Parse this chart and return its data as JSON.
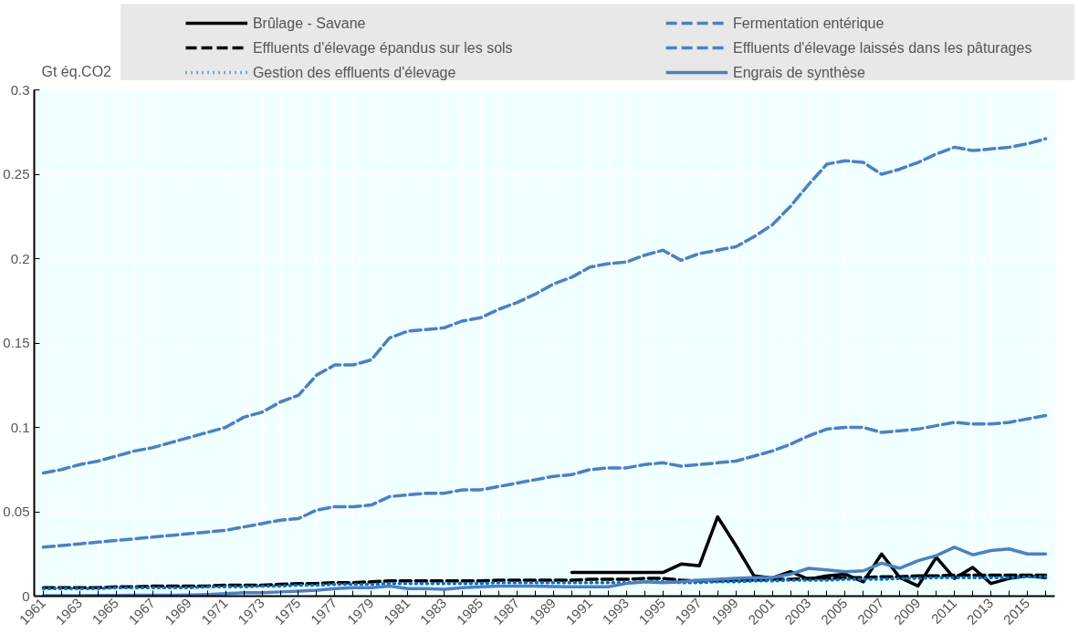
{
  "chart_data": {
    "type": "line",
    "ylabel": "Gt éq.CO2",
    "categories": [
      "1961",
      null,
      "1963",
      null,
      "1965",
      null,
      "1967",
      null,
      "1969",
      null,
      "1971",
      null,
      "1973",
      null,
      "1975",
      null,
      "1977",
      null,
      "1979",
      null,
      "1981",
      null,
      "1983",
      null,
      "1985",
      null,
      "1987",
      null,
      "1989",
      null,
      "1991",
      null,
      "1993",
      null,
      "1995",
      null,
      "1997",
      null,
      "1999",
      null,
      "2001",
      null,
      "2003",
      null,
      "2005",
      null,
      "2007",
      null,
      "2009",
      null,
      "2011",
      null,
      "2013",
      null,
      "2015",
      null
    ],
    "ylim": [
      0,
      0.3
    ],
    "yticks": [
      0,
      0.05,
      0.1,
      0.15,
      0.2,
      0.25,
      0.3
    ],
    "grid": true,
    "legend": "top",
    "series": [
      {
        "name": "Brûlage - Savane",
        "color": "#000000",
        "line_style": "solid",
        "values": [
          null,
          null,
          null,
          null,
          null,
          null,
          null,
          null,
          null,
          null,
          null,
          null,
          null,
          null,
          null,
          null,
          null,
          null,
          null,
          null,
          null,
          null,
          null,
          null,
          null,
          null,
          null,
          null,
          null,
          0.014,
          0.014,
          0.014,
          0.014,
          0.014,
          0.014,
          0.019,
          0.018,
          0.047,
          0.03,
          0.012,
          0.0107,
          0.0145,
          0.01,
          0.012,
          0.013,
          0.0085,
          0.025,
          0.011,
          0.006,
          0.023,
          0.0105,
          0.017,
          0.0075,
          0.0105,
          0.012,
          0.011
        ]
      },
      {
        "name": "Effluents d'élevage épandus sur les sols",
        "color": "#000000",
        "line_style": "dashed",
        "values": [
          0.005,
          0.005,
          0.005,
          0.005,
          0.0055,
          0.0055,
          0.006,
          0.006,
          0.006,
          0.006,
          0.0065,
          0.0065,
          0.0065,
          0.007,
          0.0075,
          0.0075,
          0.008,
          0.008,
          0.0085,
          0.009,
          0.009,
          0.009,
          0.009,
          0.009,
          0.009,
          0.0095,
          0.0095,
          0.0095,
          0.0095,
          0.0095,
          0.01,
          0.01,
          0.01,
          0.0105,
          0.0105,
          0.0095,
          0.009,
          0.009,
          0.0095,
          0.0095,
          0.01,
          0.01,
          0.0105,
          0.0105,
          0.011,
          0.011,
          0.0115,
          0.0115,
          0.012,
          0.012,
          0.0125,
          0.0125,
          0.0125,
          0.0125,
          0.0125,
          0.0125
        ]
      },
      {
        "name": "Gestion des effluents d'élevage",
        "color": "#0070c0",
        "line_style": "dotted",
        "values": [
          0.0045,
          0.0045,
          0.0045,
          0.0045,
          0.005,
          0.005,
          0.005,
          0.005,
          0.005,
          0.0055,
          0.0055,
          0.0055,
          0.006,
          0.006,
          0.0065,
          0.0065,
          0.007,
          0.007,
          0.007,
          0.0075,
          0.0075,
          0.0075,
          0.0075,
          0.0075,
          0.0075,
          0.008,
          0.008,
          0.008,
          0.008,
          0.008,
          0.008,
          0.008,
          0.008,
          0.0085,
          0.0085,
          0.008,
          0.008,
          0.0085,
          0.0085,
          0.009,
          0.009,
          0.0095,
          0.0095,
          0.0095,
          0.01,
          0.01,
          0.01,
          0.0105,
          0.0105,
          0.011,
          0.011,
          0.011,
          0.011,
          0.011,
          0.0115,
          0.0115
        ]
      },
      {
        "name": "Fermentation entérique",
        "color": "#4f7fc0",
        "line_style": "dashed",
        "values": [
          0.073,
          0.075,
          0.078,
          0.08,
          0.083,
          0.086,
          0.088,
          0.091,
          0.094,
          0.097,
          0.1,
          0.106,
          0.109,
          0.115,
          0.119,
          0.131,
          0.137,
          0.137,
          0.14,
          0.153,
          0.157,
          0.158,
          0.159,
          0.163,
          0.165,
          0.17,
          0.174,
          0.179,
          0.185,
          0.189,
          0.195,
          0.197,
          0.198,
          0.202,
          0.205,
          0.199,
          0.203,
          0.205,
          0.207,
          0.213,
          0.22,
          0.231,
          0.244,
          0.256,
          0.258,
          0.257,
          0.25,
          0.253,
          0.257,
          0.262,
          0.266,
          0.264,
          0.265,
          0.266,
          0.268,
          0.271
        ]
      },
      {
        "name": "Effluents d'élevage laissés dans les pâturages",
        "color": "#4f7fc0",
        "line_style": "dashed",
        "values": [
          0.029,
          0.03,
          0.031,
          0.032,
          0.033,
          0.034,
          0.035,
          0.036,
          0.037,
          0.038,
          0.039,
          0.041,
          0.043,
          0.045,
          0.046,
          0.051,
          0.053,
          0.053,
          0.054,
          0.059,
          0.06,
          0.061,
          0.061,
          0.063,
          0.063,
          0.065,
          0.067,
          0.069,
          0.071,
          0.072,
          0.075,
          0.076,
          0.076,
          0.078,
          0.079,
          0.077,
          0.078,
          0.079,
          0.08,
          0.083,
          0.086,
          0.09,
          0.095,
          0.099,
          0.1,
          0.1,
          0.097,
          0.098,
          0.099,
          0.101,
          0.103,
          0.102,
          0.102,
          0.103,
          0.105,
          0.107
        ]
      },
      {
        "name": "Engrais de synthèse",
        "color": "#4f7fc0",
        "line_style": "solid",
        "values": [
          0.0003,
          0.0003,
          0.0003,
          0.0004,
          0.0004,
          0.0005,
          0.0005,
          0.0006,
          0.0007,
          0.001,
          0.0015,
          0.002,
          0.002,
          0.0025,
          0.003,
          0.0035,
          0.0045,
          0.005,
          0.005,
          0.006,
          0.0045,
          0.0045,
          0.004,
          0.005,
          0.0055,
          0.006,
          0.006,
          0.006,
          0.0057,
          0.0055,
          0.0055,
          0.0055,
          0.0075,
          0.0085,
          0.008,
          0.0085,
          0.0095,
          0.01,
          0.0105,
          0.011,
          0.011,
          0.013,
          0.0165,
          0.0155,
          0.0145,
          0.015,
          0.0195,
          0.0165,
          0.021,
          0.024,
          0.029,
          0.0245,
          0.027,
          0.028,
          0.025,
          0.025
        ]
      }
    ]
  }
}
